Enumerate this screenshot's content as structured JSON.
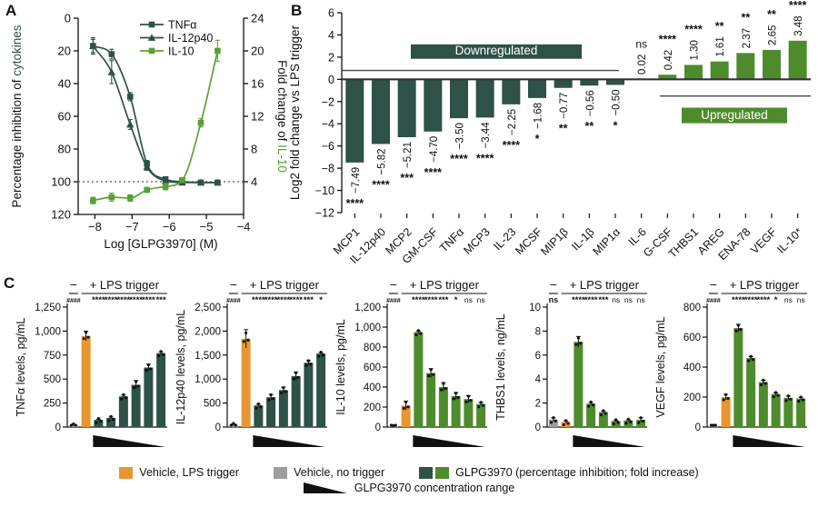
{
  "panels": {
    "a": "A",
    "b": "B",
    "c": "C"
  },
  "colors": {
    "teal": "#2e5148",
    "green": "#4e8b2c",
    "green_bright": "#58a233",
    "orange": "#e8962f",
    "gray": "#9d9d9d",
    "axis": "#111111"
  },
  "chart_data": [
    {
      "id": "A",
      "type": "line",
      "xlabel": "Log [GLPG3970] (M)",
      "ylabel_left": {
        "black": "Percentage inhibition of ",
        "colored": "cytokines",
        "color_key": "teal"
      },
      "ylabel_right": {
        "black": "Fold change of ",
        "colored": "IL-10",
        "color_key": "green_bright"
      },
      "x_ticks": [
        -8,
        -7,
        -6,
        -5,
        -4
      ],
      "y_left": {
        "min": 0,
        "max": 120,
        "ticks": [
          0,
          20,
          40,
          60,
          80,
          100,
          120
        ],
        "inverted": true
      },
      "y_right": {
        "min": 0,
        "max": 24,
        "ticks": [
          4,
          8,
          12,
          16,
          20,
          24
        ]
      },
      "dotted_line_left": 100,
      "series": [
        {
          "name": "TNFα",
          "marker": "square",
          "color_key": "teal",
          "axis": "left",
          "x": [
            -8.05,
            -7.55,
            -7.05,
            -6.6,
            -6.1,
            -5.65,
            -5.15,
            -4.7
          ],
          "y": [
            17,
            22,
            48,
            89,
            98.5,
            100,
            100.5,
            100.5
          ],
          "err": [
            5,
            3,
            2.5,
            2,
            1.5,
            1,
            1,
            1
          ]
        },
        {
          "name": "IL-12p40",
          "marker": "triangle",
          "color_key": "teal",
          "axis": "left",
          "x": [
            -8.05,
            -7.55,
            -7.05,
            -6.6,
            -6.1,
            -5.65,
            -5.15,
            -4.7
          ],
          "y": [
            17,
            33,
            65,
            91,
            99.5,
            100.5,
            100.5,
            100.5
          ],
          "err": [
            4,
            7,
            3,
            2,
            1.5,
            1,
            1,
            1
          ]
        },
        {
          "name": "IL-10",
          "marker": "square",
          "color_key": "green_bright",
          "axis": "right",
          "x": [
            -8.05,
            -7.55,
            -7.05,
            -6.6,
            -6.1,
            -5.65,
            -5.15,
            -4.7
          ],
          "y": [
            1.7,
            2.1,
            2.0,
            3.0,
            3.4,
            4.2,
            11.2,
            20.0
          ],
          "err": [
            0.4,
            0.5,
            0.4,
            0.3,
            0.4,
            0.3,
            0.5,
            1.3
          ]
        }
      ]
    },
    {
      "id": "B",
      "type": "bar",
      "ylabel": "Log2 fold change vs LPS trigger",
      "ylim": [
        -12,
        6
      ],
      "yticks": [
        6,
        4,
        2,
        0,
        -2,
        -4,
        -6,
        -8,
        -10,
        -12
      ],
      "categories": [
        "MCP1",
        "IL-12p40",
        "MCP2",
        "GM-CSF",
        "TNFα",
        "MCP3",
        "IL-23",
        "MCSF",
        "MIP1β",
        "IL-1β",
        "MIP1α",
        "IL-6",
        "G-CSF",
        "THBS1",
        "AREG",
        "ENA-78",
        "VEGF",
        "IL-10*"
      ],
      "values": [
        -7.49,
        -5.82,
        -5.21,
        -4.7,
        -3.5,
        -3.44,
        -2.25,
        -1.68,
        -0.77,
        -0.56,
        -0.5,
        0.02,
        0.42,
        1.3,
        1.61,
        2.37,
        2.65,
        3.48
      ],
      "value_labels": [
        "−7.49",
        "−5.82",
        "−5.21",
        "−4.70",
        "−3.50",
        "−3.44",
        "−2.25",
        "−1.68",
        "−0.77",
        "−0.56",
        "−0.50",
        "0.02",
        "0.42",
        "1.30",
        "1.61",
        "2.37",
        "2.65",
        "3.48"
      ],
      "significance": [
        "****",
        "****",
        "***",
        "****",
        "****",
        "****",
        "****",
        "*",
        "**",
        "**",
        "*",
        "ns",
        "****",
        "****",
        "**",
        "**",
        "**",
        "****"
      ],
      "down_label": "Downregulated",
      "up_label": "Upregulated",
      "down_color_key": "teal",
      "up_color_key": "green",
      "guide_line_down_y": 0.8,
      "guide_line_up_y": -1.5
    },
    {
      "id": "C1",
      "type": "bar",
      "ylabel": "TNFα levels, pg/mL",
      "ylim": [
        0,
        1250
      ],
      "yticks": [
        0,
        250,
        500,
        750,
        1000,
        1250
      ],
      "minus_label": "−",
      "lps_label": "+ LPS trigger",
      "first_marker": "####",
      "sig_markers": [
        "****",
        "****",
        "****",
        "****",
        "****",
        "***"
      ],
      "bar_values": [
        20,
        950,
        75,
        95,
        320,
        440,
        620,
        770
      ],
      "bar_errs": [
        5,
        50,
        8,
        10,
        15,
        45,
        35,
        15
      ],
      "bar_colors": [
        "gray",
        "orange",
        "teal",
        "teal",
        "teal",
        "teal",
        "teal",
        "teal"
      ]
    },
    {
      "id": "C2",
      "type": "bar",
      "ylabel": "IL-12p40 levels, pg/mL",
      "ylim": [
        0,
        2500
      ],
      "yticks": [
        0,
        500,
        1000,
        1500,
        2000,
        2500
      ],
      "minus_label": "−",
      "lps_label": "+ LPS trigger",
      "first_marker": "####",
      "sig_markers": [
        "****",
        "****",
        "****",
        "****",
        "***",
        "*"
      ],
      "bar_values": [
        50,
        1840,
        450,
        620,
        770,
        1060,
        1340,
        1530
      ],
      "bar_errs": [
        15,
        190,
        25,
        60,
        60,
        90,
        45,
        20
      ],
      "bar_colors": [
        "gray",
        "orange",
        "teal",
        "teal",
        "teal",
        "teal",
        "teal",
        "teal"
      ]
    },
    {
      "id": "C3",
      "type": "bar",
      "ylabel": "IL-10 levels, pg/mL",
      "ylim": [
        0,
        1200
      ],
      "yticks": [
        0,
        200,
        400,
        600,
        800,
        1000,
        1200
      ],
      "minus_label": "−",
      "lps_label": "+ LPS trigger",
      "first_marker": "####",
      "sig_markers": [
        "****",
        "****",
        "***",
        "*",
        "ns",
        "ns"
      ],
      "bar_values": [
        5,
        215,
        950,
        540,
        400,
        310,
        280,
        230
      ],
      "bar_errs": [
        2,
        45,
        10,
        45,
        45,
        35,
        35,
        15
      ],
      "bar_colors": [
        "gray",
        "orange",
        "green",
        "green",
        "green",
        "green",
        "green",
        "green"
      ]
    },
    {
      "id": "C4",
      "type": "bar",
      "ylabel": "THBS1 levels, ng/mL",
      "ylim": [
        0,
        10
      ],
      "yticks": [
        0,
        2,
        4,
        6,
        8,
        10
      ],
      "minus_label": "−",
      "lps_label": "+ LPS trigger",
      "first_marker": "ns",
      "sig_markers": [
        "****",
        "****",
        "***",
        "ns",
        "ns",
        "ns"
      ],
      "bar_values": [
        0.62,
        0.42,
        7.1,
        1.95,
        1.25,
        0.5,
        0.55,
        0.6
      ],
      "bar_errs": [
        0.15,
        0.08,
        0.45,
        0.1,
        0.08,
        0.06,
        0.06,
        0.18
      ],
      "bar_colors": [
        "gray",
        "orange",
        "green",
        "green",
        "green",
        "green",
        "green",
        "green"
      ]
    },
    {
      "id": "C5",
      "type": "bar",
      "ylabel": "VEGF levels, pg/mL",
      "ylim": [
        0,
        800
      ],
      "yticks": [
        0,
        200,
        400,
        600,
        800
      ],
      "minus_label": "−",
      "lps_label": "+ LPS trigger",
      "first_marker": "####",
      "sig_markers": [
        "****",
        "****",
        "****",
        "*",
        "ns",
        "ns"
      ],
      "bar_values": [
        5,
        200,
        660,
        460,
        300,
        220,
        195,
        190
      ],
      "bar_errs": [
        2,
        18,
        25,
        10,
        12,
        8,
        12,
        8
      ],
      "bar_colors": [
        "gray",
        "orange",
        "green",
        "green",
        "green",
        "green",
        "green",
        "green"
      ]
    }
  ],
  "legend": {
    "items": [
      {
        "swatches": [
          "orange"
        ],
        "label": "Vehicle, LPS trigger"
      },
      {
        "swatches": [
          "gray"
        ],
        "label": "Vehicle, no trigger"
      },
      {
        "swatches": [
          "teal",
          "green"
        ],
        "label": "GLPG3970 (percentage inhibition; fold increase)"
      }
    ],
    "range_label": "GLPG3970 concentration range"
  }
}
